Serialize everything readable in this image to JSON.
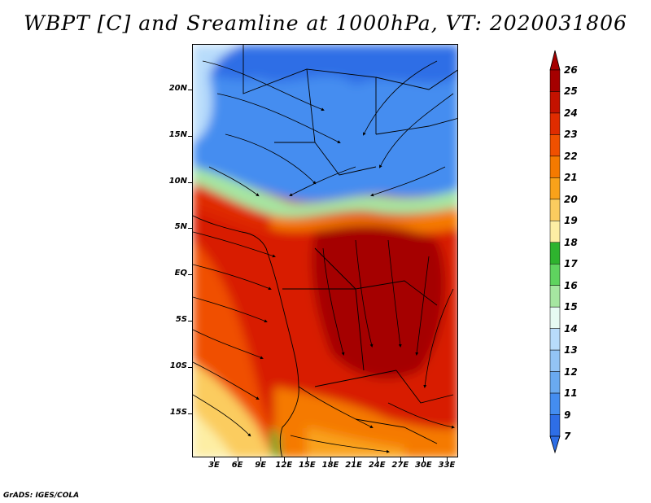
{
  "title": "WBPT [C] and Sreamline at 1000hPa, VT: 2020031806",
  "footer": "GrADS: IGES/COLA",
  "map": {
    "lat_labels": [
      "20N",
      "15N",
      "10N",
      "5N",
      "EQ",
      "5S",
      "10S",
      "15S"
    ],
    "lon_labels": [
      "3E",
      "6E",
      "9E",
      "12E",
      "15E",
      "18E",
      "21E",
      "24E",
      "27E",
      "30E",
      "33E"
    ]
  },
  "colorbar": {
    "labels": [
      "26",
      "25",
      "24",
      "23",
      "22",
      "21",
      "20",
      "19",
      "18",
      "17",
      "16",
      "15",
      "14",
      "13",
      "12",
      "11",
      "9",
      "7"
    ],
    "colors": [
      "#a50000",
      "#c41200",
      "#e02c00",
      "#f05000",
      "#f57a00",
      "#f9a21a",
      "#fbcc5f",
      "#fdeea4",
      "#2eb32e",
      "#5fd35f",
      "#a6e6a1",
      "#e7fbf3",
      "#b8dcfb",
      "#93c4f5",
      "#6aaaf0",
      "#448df0",
      "#2e6ee6"
    ]
  }
}
